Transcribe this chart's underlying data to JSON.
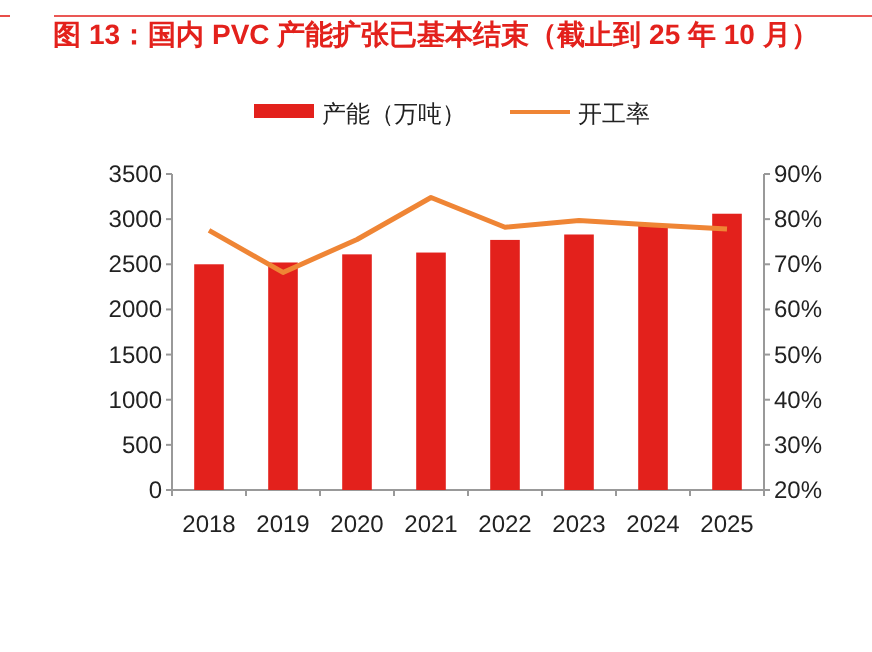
{
  "chart_data": {
    "type": "bar",
    "title": "图 13：国内 PVC 产能扩张已基本结束（截止到 25 年 10 月）",
    "categories": [
      "2018",
      "2019",
      "2020",
      "2021",
      "2022",
      "2023",
      "2024",
      "2025"
    ],
    "series": [
      {
        "name": "产能（万吨）",
        "color": "#e3211c",
        "values": [
          2500,
          2520,
          2610,
          2630,
          2770,
          2830,
          2940,
          3060
        ]
      },
      {
        "name": "开工率",
        "type": "line",
        "axis": "y2",
        "color": "#ef8535",
        "values": [
          77.5,
          68.2,
          75.5,
          84.8,
          78.2,
          79.7,
          78.7,
          77.8
        ]
      }
    ],
    "ylim": [
      0,
      3500
    ],
    "yticks": [
      0,
      500,
      1000,
      1500,
      2000,
      2500,
      3000,
      3500
    ],
    "y2lim": [
      20,
      90
    ],
    "y2ticks": [
      {
        "value": 20,
        "label": "20%"
      },
      {
        "value": 30,
        "label": "30%"
      },
      {
        "value": 40,
        "label": "40%"
      },
      {
        "value": 50,
        "label": "50%"
      },
      {
        "value": 60,
        "label": "60%"
      },
      {
        "value": 70,
        "label": "70%"
      },
      {
        "value": 80,
        "label": "80%"
      },
      {
        "value": 90,
        "label": "90%"
      }
    ],
    "legend": "top",
    "grid": false
  }
}
